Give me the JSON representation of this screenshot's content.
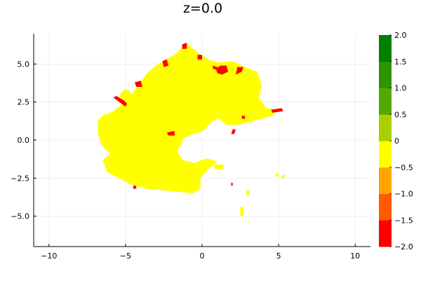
{
  "chart_data": {
    "type": "heatmap",
    "title": "z=0.0",
    "xlabel": "",
    "ylabel": "",
    "xlim": [
      -11,
      11
    ],
    "ylim": [
      -7,
      7
    ],
    "grid": true,
    "x_ticks": [
      {
        "value": -10,
        "label": "−10"
      },
      {
        "value": -5,
        "label": "−5"
      },
      {
        "value": 0,
        "label": "0"
      },
      {
        "value": 5,
        "label": "5"
      },
      {
        "value": 10,
        "label": "10"
      }
    ],
    "y_ticks": [
      {
        "value": 5.0,
        "label": "5.0"
      },
      {
        "value": 2.5,
        "label": "2.5"
      },
      {
        "value": 0.0,
        "label": "0.0"
      },
      {
        "value": -2.5,
        "label": "−2.5"
      },
      {
        "value": -5.0,
        "label": "−5.0"
      }
    ],
    "colorbar": {
      "range": [
        -2.0,
        2.0
      ],
      "bands": [
        {
          "from": -2.0,
          "to": -1.5,
          "color": "#ff0000"
        },
        {
          "from": -1.5,
          "to": -1.0,
          "color": "#ff5a00"
        },
        {
          "from": -1.0,
          "to": -0.5,
          "color": "#ffa500"
        },
        {
          "from": -0.5,
          "to": 0.0,
          "color": "#ffff00"
        },
        {
          "from": 0.0,
          "to": 0.5,
          "color": "#aacf00"
        },
        {
          "from": 0.5,
          "to": 1.0,
          "color": "#55a800"
        },
        {
          "from": 1.0,
          "to": 1.5,
          "color": "#2f9400"
        },
        {
          "from": 1.5,
          "to": 2.0,
          "color": "#008000"
        }
      ],
      "ticks": [
        {
          "value": 2.0,
          "label": "2.0"
        },
        {
          "value": 1.5,
          "label": "1.5"
        },
        {
          "value": 1.0,
          "label": "1.0"
        },
        {
          "value": 0.5,
          "label": "0.5"
        },
        {
          "value": 0.0,
          "label": "0"
        },
        {
          "value": -0.5,
          "label": "−0.5"
        },
        {
          "value": -1.0,
          "label": "−1.0"
        },
        {
          "value": -1.5,
          "label": "−1.5"
        },
        {
          "value": -2.0,
          "label": "−2.0"
        }
      ]
    },
    "regions": [
      {
        "value": -0.25,
        "color": "#ffff00",
        "polygon": [
          [
            -6.8,
            1.3
          ],
          [
            -6.5,
            1.6
          ],
          [
            -5.8,
            1.9
          ],
          [
            -5.2,
            2.4
          ],
          [
            -4.6,
            3.0
          ],
          [
            -4.1,
            3.7
          ],
          [
            -3.6,
            4.4
          ],
          [
            -3.0,
            4.9
          ],
          [
            -2.4,
            5.3
          ],
          [
            -1.8,
            5.6
          ],
          [
            -1.3,
            6.1
          ],
          [
            -1.0,
            6.4
          ],
          [
            -0.7,
            6.1
          ],
          [
            -0.2,
            5.7
          ],
          [
            0.4,
            5.3
          ],
          [
            1.1,
            5.1
          ],
          [
            2.0,
            5.2
          ],
          [
            2.8,
            4.8
          ],
          [
            3.6,
            4.5
          ],
          [
            3.9,
            3.6
          ],
          [
            3.7,
            2.8
          ],
          [
            4.2,
            2.1
          ],
          [
            4.9,
            2.0
          ],
          [
            4.6,
            1.6
          ],
          [
            3.5,
            1.3
          ],
          [
            2.4,
            1.0
          ],
          [
            1.6,
            1.0
          ],
          [
            1.1,
            1.4
          ],
          [
            0.6,
            1.2
          ],
          [
            0.1,
            0.6
          ],
          [
            -0.6,
            0.4
          ],
          [
            -1.2,
            0.1
          ],
          [
            -1.6,
            -0.7
          ],
          [
            -1.3,
            -1.3
          ],
          [
            -0.5,
            -1.5
          ],
          [
            0.3,
            -1.2
          ],
          [
            1.0,
            -1.4
          ],
          [
            0.4,
            -1.9
          ],
          [
            -0.1,
            -2.5
          ],
          [
            -0.1,
            -3.2
          ],
          [
            -0.6,
            -3.5
          ],
          [
            -1.6,
            -3.4
          ],
          [
            -2.5,
            -3.3
          ],
          [
            -3.6,
            -3.2
          ],
          [
            -4.7,
            -2.9
          ],
          [
            -6.2,
            -2.1
          ],
          [
            -6.5,
            -1.3
          ],
          [
            -6.0,
            -0.9
          ],
          [
            -6.6,
            -0.3
          ],
          [
            -6.8,
            0.4
          ]
        ]
      },
      {
        "value": -0.25,
        "color": "#ffff00",
        "polygon": [
          [
            -5.2,
            2.0
          ],
          [
            -4.6,
            1.8
          ],
          [
            -4.2,
            2.5
          ],
          [
            -4.6,
            3.1
          ],
          [
            -5.0,
            3.4
          ],
          [
            -5.4,
            3.0
          ]
        ]
      },
      {
        "value": -1.75,
        "color": "#ff0000",
        "polygon": [
          [
            -5.6,
            2.9
          ],
          [
            -5.1,
            2.6
          ],
          [
            -4.9,
            2.4
          ],
          [
            -5.0,
            2.2
          ],
          [
            -5.4,
            2.5
          ],
          [
            -5.8,
            2.8
          ]
        ]
      },
      {
        "value": -1.75,
        "color": "#ff0000",
        "polygon": [
          [
            -4.4,
            3.8
          ],
          [
            -4.0,
            3.9
          ],
          [
            -3.9,
            3.5
          ],
          [
            -4.3,
            3.5
          ]
        ]
      },
      {
        "value": -1.75,
        "color": "#ff0000",
        "polygon": [
          [
            -2.6,
            5.2
          ],
          [
            -2.3,
            5.3
          ],
          [
            -2.2,
            4.9
          ],
          [
            -2.5,
            4.8
          ]
        ]
      },
      {
        "value": -1.75,
        "color": "#ff0000",
        "polygon": [
          [
            -1.3,
            6.3
          ],
          [
            -1.0,
            6.4
          ],
          [
            -1.0,
            6.0
          ],
          [
            -1.3,
            6.0
          ]
        ]
      },
      {
        "value": -1.75,
        "color": "#ff0000",
        "polygon": [
          [
            -0.3,
            5.6
          ],
          [
            0.0,
            5.6
          ],
          [
            0.0,
            5.3
          ],
          [
            -0.3,
            5.3
          ]
        ]
      },
      {
        "value": -1.75,
        "color": "#ff0000",
        "polygon": [
          [
            0.7,
            4.9
          ],
          [
            1.0,
            4.8
          ],
          [
            1.0,
            4.6
          ],
          [
            0.7,
            4.7
          ]
        ]
      },
      {
        "value": -1.75,
        "color": "#ff0000",
        "polygon": [
          [
            0.9,
            4.7
          ],
          [
            1.2,
            4.9
          ],
          [
            1.6,
            4.9
          ],
          [
            1.7,
            4.5
          ],
          [
            1.3,
            4.3
          ],
          [
            1.0,
            4.4
          ]
        ]
      },
      {
        "value": -1.75,
        "color": "#ff0000",
        "polygon": [
          [
            2.3,
            4.8
          ],
          [
            2.7,
            4.8
          ],
          [
            2.6,
            4.5
          ],
          [
            2.2,
            4.3
          ]
        ]
      },
      {
        "value": -1.75,
        "color": "#ff0000",
        "polygon": [
          [
            4.5,
            2.0
          ],
          [
            5.2,
            2.1
          ],
          [
            5.3,
            1.9
          ],
          [
            4.6,
            1.8
          ]
        ]
      },
      {
        "value": -1.75,
        "color": "#ff0000",
        "polygon": [
          [
            -2.3,
            0.5
          ],
          [
            -1.8,
            0.6
          ],
          [
            -1.8,
            0.3
          ],
          [
            -2.2,
            0.3
          ]
        ]
      },
      {
        "value": -1.75,
        "color": "#ff0000",
        "polygon": [
          [
            2.0,
            0.7
          ],
          [
            2.2,
            0.7
          ],
          [
            2.1,
            0.4
          ],
          [
            1.9,
            0.4
          ]
        ]
      },
      {
        "value": -1.75,
        "color": "#ff0000",
        "polygon": [
          [
            2.6,
            1.6
          ],
          [
            2.8,
            1.6
          ],
          [
            2.8,
            1.4
          ],
          [
            2.6,
            1.4
          ]
        ]
      },
      {
        "value": -0.25,
        "color": "#ffff00",
        "polygon": [
          [
            0.8,
            -1.6
          ],
          [
            1.4,
            -1.6
          ],
          [
            1.4,
            -1.9
          ],
          [
            0.8,
            -1.9
          ]
        ]
      },
      {
        "value": -0.25,
        "color": "#ffff00",
        "polygon": [
          [
            5.2,
            -2.3
          ],
          [
            5.4,
            -2.3
          ],
          [
            5.4,
            -2.5
          ],
          [
            5.2,
            -2.5
          ]
        ]
      },
      {
        "value": -0.25,
        "color": "#ffff00",
        "polygon": [
          [
            4.8,
            -2.2
          ],
          [
            5.0,
            -2.2
          ],
          [
            5.0,
            -2.4
          ],
          [
            4.8,
            -2.4
          ]
        ]
      },
      {
        "value": -0.25,
        "color": "#ffff00",
        "polygon": [
          [
            2.9,
            -3.3
          ],
          [
            3.1,
            -3.3
          ],
          [
            3.1,
            -3.6
          ],
          [
            2.9,
            -3.6
          ]
        ]
      },
      {
        "value": -0.25,
        "color": "#ffff00",
        "polygon": [
          [
            2.5,
            -4.4
          ],
          [
            2.7,
            -4.4
          ],
          [
            2.7,
            -5.0
          ],
          [
            2.5,
            -5.0
          ]
        ]
      },
      {
        "value": -1.75,
        "color": "#ff0000",
        "polygon": [
          [
            1.9,
            -2.8
          ],
          [
            2.0,
            -2.8
          ],
          [
            2.0,
            -3.0
          ],
          [
            1.9,
            -3.0
          ]
        ]
      },
      {
        "value": -1.75,
        "color": "#ff0000",
        "polygon": [
          [
            -4.5,
            -3.0
          ],
          [
            -4.3,
            -3.0
          ],
          [
            -4.3,
            -3.2
          ],
          [
            -4.5,
            -3.2
          ]
        ]
      }
    ]
  }
}
